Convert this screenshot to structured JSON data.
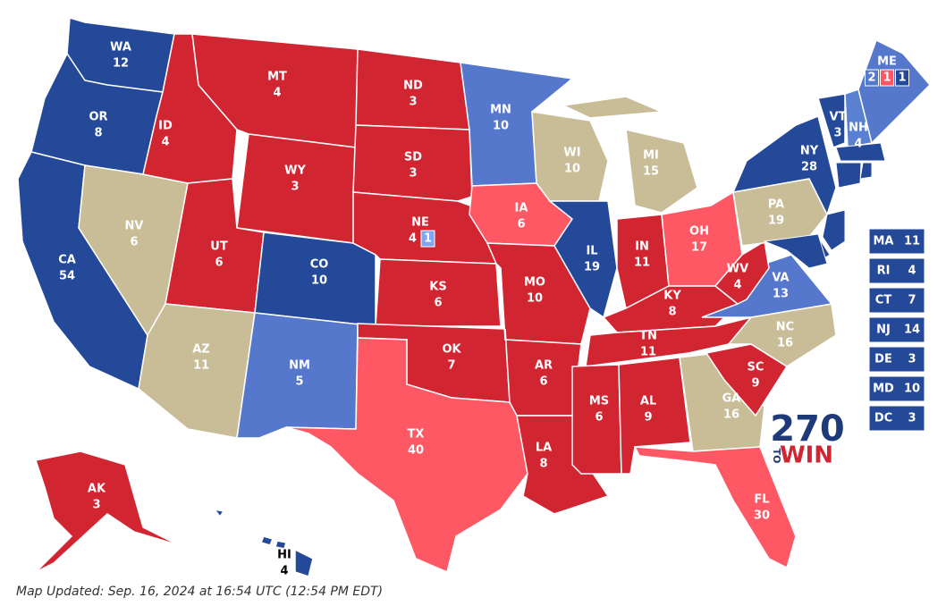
{
  "states": [
    {
      "abbr": "WA",
      "votes": 12,
      "color": "#244999"
    },
    {
      "abbr": "OR",
      "votes": 8,
      "color": "#244999"
    },
    {
      "abbr": "CA",
      "votes": 54,
      "color": "#244999"
    },
    {
      "abbr": "NV",
      "votes": 6,
      "color": "#c9bd98"
    },
    {
      "abbr": "ID",
      "votes": 4,
      "color": "#d22532"
    },
    {
      "abbr": "MT",
      "votes": 4,
      "color": "#d22532"
    },
    {
      "abbr": "WY",
      "votes": 3,
      "color": "#d22532"
    },
    {
      "abbr": "UT",
      "votes": 6,
      "color": "#d22532"
    },
    {
      "abbr": "AZ",
      "votes": 11,
      "color": "#c9bd98"
    },
    {
      "abbr": "CO",
      "votes": 10,
      "color": "#244999"
    },
    {
      "abbr": "NM",
      "votes": 5,
      "color": "#5577cc"
    },
    {
      "abbr": "ND",
      "votes": 3,
      "color": "#d22532"
    },
    {
      "abbr": "SD",
      "votes": 3,
      "color": "#d22532"
    },
    {
      "abbr": "NE",
      "votes": 4,
      "color": "#d22532",
      "splits": [
        {
          "votes": 1,
          "color": "#7ea7f0"
        }
      ]
    },
    {
      "abbr": "KS",
      "votes": 6,
      "color": "#d22532"
    },
    {
      "abbr": "OK",
      "votes": 7,
      "color": "#d22532"
    },
    {
      "abbr": "TX",
      "votes": 40,
      "color": "#ff5865"
    },
    {
      "abbr": "MN",
      "votes": 10,
      "color": "#5577cc"
    },
    {
      "abbr": "IA",
      "votes": 6,
      "color": "#ff5865"
    },
    {
      "abbr": "MO",
      "votes": 10,
      "color": "#d22532"
    },
    {
      "abbr": "AR",
      "votes": 6,
      "color": "#d22532"
    },
    {
      "abbr": "LA",
      "votes": 8,
      "color": "#d22532"
    },
    {
      "abbr": "WI",
      "votes": 10,
      "color": "#c9bd98"
    },
    {
      "abbr": "IL",
      "votes": 19,
      "color": "#244999"
    },
    {
      "abbr": "MI",
      "votes": 15,
      "color": "#c9bd98"
    },
    {
      "abbr": "IN",
      "votes": 11,
      "color": "#d22532"
    },
    {
      "abbr": "OH",
      "votes": 17,
      "color": "#ff5865"
    },
    {
      "abbr": "KY",
      "votes": 8,
      "color": "#d22532"
    },
    {
      "abbr": "TN",
      "votes": 11,
      "color": "#d22532"
    },
    {
      "abbr": "MS",
      "votes": 6,
      "color": "#d22532"
    },
    {
      "abbr": "AL",
      "votes": 9,
      "color": "#d22532"
    },
    {
      "abbr": "GA",
      "votes": 16,
      "color": "#c9bd98"
    },
    {
      "abbr": "FL",
      "votes": 30,
      "color": "#ff5865"
    },
    {
      "abbr": "SC",
      "votes": 9,
      "color": "#d22532"
    },
    {
      "abbr": "NC",
      "votes": 16,
      "color": "#c9bd98"
    },
    {
      "abbr": "VA",
      "votes": 13,
      "color": "#5577cc"
    },
    {
      "abbr": "WV",
      "votes": 4,
      "color": "#d22532"
    },
    {
      "abbr": "PA",
      "votes": 19,
      "color": "#c9bd98"
    },
    {
      "abbr": "NY",
      "votes": 28,
      "color": "#244999"
    },
    {
      "abbr": "VT",
      "votes": 3,
      "color": "#244999"
    },
    {
      "abbr": "NH",
      "votes": 4,
      "color": "#5a80d2"
    },
    {
      "abbr": "ME",
      "color": "#5577cc",
      "splits": [
        {
          "votes": 2,
          "color": "#5577cc"
        },
        {
          "votes": 1,
          "color": "#ff5865"
        },
        {
          "votes": 1,
          "color": "#244999"
        }
      ]
    },
    {
      "abbr": "AK",
      "votes": 3,
      "color": "#d22532"
    },
    {
      "abbr": "HI",
      "votes": 4,
      "color": "#244999",
      "label_color": "#000000"
    }
  ],
  "small_state_color": "#244999",
  "small_states": [
    {
      "abbr": "MA",
      "votes": 11
    },
    {
      "abbr": "RI",
      "votes": 4
    },
    {
      "abbr": "CT",
      "votes": 7
    },
    {
      "abbr": "NJ",
      "votes": 14
    },
    {
      "abbr": "DE",
      "votes": 3
    },
    {
      "abbr": "MD",
      "votes": 10
    },
    {
      "abbr": "DC",
      "votes": 3
    }
  ],
  "logo": {
    "number": "270",
    "to": "TO",
    "win": "WIN"
  },
  "footer": "Map Updated: Sep. 16, 2024 at 16:54 UTC (12:54 PM EDT)"
}
